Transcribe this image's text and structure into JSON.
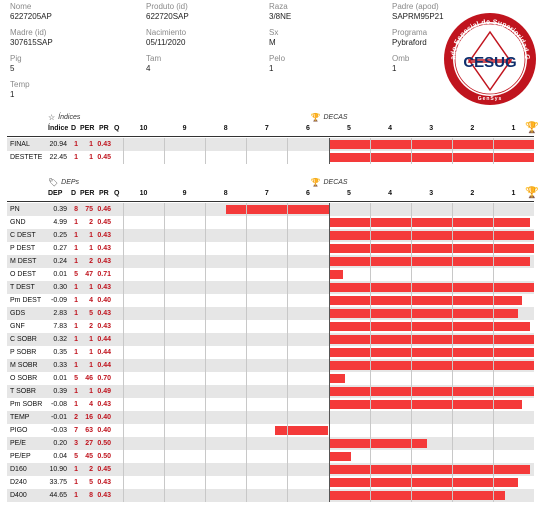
{
  "animal": {
    "fields": [
      {
        "label": "Nome",
        "value": "6227205AP"
      },
      {
        "label": "Produto (id)",
        "value": "622720SAP"
      },
      {
        "label": "Raza",
        "value": "3/8NE"
      },
      {
        "label": "Padre (apod)",
        "value": "SAPRM95P21"
      },
      {
        "label": "Madre (id)",
        "value": "307615SAP"
      },
      {
        "label": "Nacimiento",
        "value": "05/11/2020"
      },
      {
        "label": "Sx",
        "value": "M"
      },
      {
        "label": "Programa",
        "value": "Pybraford"
      },
      {
        "label": "Pig",
        "value": "5"
      },
      {
        "label": "Tam",
        "value": "4"
      },
      {
        "label": "Pelo",
        "value": "1"
      },
      {
        "label": "Omb",
        "value": "1"
      },
      {
        "label": "Temp",
        "value": "1"
      }
    ]
  },
  "seal": {
    "center_text": "CESUG",
    "ring_text": "Certificado Especial de Superioridad Genética",
    "bottom_text": "GenSys",
    "colors": {
      "ring": "#c0141e",
      "inner": "#ffffff",
      "center": "#0d2d6b"
    }
  },
  "indices": {
    "title": "Índices",
    "icon": "star-outline-icon",
    "decas_title": "DECAS",
    "columns": {
      "value": "Índice",
      "d": "D",
      "per": "PER",
      "pr": "PR",
      "q": "Q"
    },
    "decas": [
      "10",
      "9",
      "8",
      "7",
      "6",
      "5",
      "4",
      "3",
      "2",
      "1"
    ],
    "rows": [
      {
        "name": "FINAL",
        "value": "20.94",
        "d": "1",
        "per": "1",
        "pr": "0.43",
        "q": "",
        "deca_level": 9.7
      },
      {
        "name": "DESTETE",
        "value": "22.45",
        "d": "1",
        "per": "1",
        "pr": "0.45",
        "q": "",
        "deca_level": 9.7
      }
    ]
  },
  "deps": {
    "title": "DEPs",
    "icon": "tag-icon",
    "decas_title": "DECAS",
    "columns": {
      "value": "DEP",
      "d": "D",
      "per": "PER",
      "pr": "PR",
      "q": "Q"
    },
    "decas": [
      "10",
      "9",
      "8",
      "7",
      "6",
      "5",
      "4",
      "3",
      "2",
      "1"
    ],
    "rows": [
      {
        "name": "PN",
        "value": "0.39",
        "d": "8",
        "per": "75",
        "pr": "0.46",
        "deca_level": -2.5
      },
      {
        "name": "GND",
        "value": "4.99",
        "d": "1",
        "per": "2",
        "pr": "0.45",
        "deca_level": 4.9
      },
      {
        "name": "C DEST",
        "value": "0.25",
        "d": "1",
        "per": "1",
        "pr": "0.43",
        "deca_level": 5.0
      },
      {
        "name": "P DEST",
        "value": "0.27",
        "d": "1",
        "per": "1",
        "pr": "0.43",
        "deca_level": 5.0
      },
      {
        "name": "M DEST",
        "value": "0.24",
        "d": "1",
        "per": "2",
        "pr": "0.43",
        "deca_level": 4.9
      },
      {
        "name": "O DEST",
        "value": "0.01",
        "d": "5",
        "per": "47",
        "pr": "0.71",
        "deca_level": 0.35
      },
      {
        "name": "T DEST",
        "value": "0.30",
        "d": "1",
        "per": "1",
        "pr": "0.43",
        "deca_level": 5.0
      },
      {
        "name": "Pm DEST",
        "value": "-0.09",
        "d": "1",
        "per": "4",
        "pr": "0.40",
        "deca_level": 4.7
      },
      {
        "name": "GDS",
        "value": "2.83",
        "d": "1",
        "per": "5",
        "pr": "0.43",
        "deca_level": 4.6
      },
      {
        "name": "GNF",
        "value": "7.83",
        "d": "1",
        "per": "2",
        "pr": "0.43",
        "deca_level": 4.9
      },
      {
        "name": "C SOBR",
        "value": "0.32",
        "d": "1",
        "per": "1",
        "pr": "0.44",
        "deca_level": 5.0
      },
      {
        "name": "P SOBR",
        "value": "0.35",
        "d": "1",
        "per": "1",
        "pr": "0.44",
        "deca_level": 5.0
      },
      {
        "name": "M SOBR",
        "value": "0.33",
        "d": "1",
        "per": "1",
        "pr": "0.44",
        "deca_level": 5.0
      },
      {
        "name": "O SOBR",
        "value": "0.01",
        "d": "5",
        "per": "46",
        "pr": "0.70",
        "deca_level": 0.4
      },
      {
        "name": "T SOBR",
        "value": "0.39",
        "d": "1",
        "per": "1",
        "pr": "0.49",
        "deca_level": 5.0
      },
      {
        "name": "Pm SOBR",
        "value": "-0.08",
        "d": "1",
        "per": "4",
        "pr": "0.43",
        "deca_level": 4.7
      },
      {
        "name": "TEMP",
        "value": "-0.01",
        "d": "2",
        "per": "16",
        "pr": "0.40",
        "deca_level": 0
      },
      {
        "name": "PIGO",
        "value": "-0.03",
        "d": "7",
        "per": "63",
        "pr": "0.40",
        "deca_level": -1.3
      },
      {
        "name": "PE/E",
        "value": "0.20",
        "d": "3",
        "per": "27",
        "pr": "0.50",
        "deca_level": 2.4
      },
      {
        "name": "PE/EP",
        "value": "0.04",
        "d": "5",
        "per": "45",
        "pr": "0.50",
        "deca_level": 0.55
      },
      {
        "name": "D160",
        "value": "10.90",
        "d": "1",
        "per": "2",
        "pr": "0.45",
        "deca_level": 4.9
      },
      {
        "name": "D240",
        "value": "33.75",
        "d": "1",
        "per": "5",
        "pr": "0.43",
        "deca_level": 4.6
      },
      {
        "name": "D400",
        "value": "44.65",
        "d": "1",
        "per": "8",
        "pr": "0.43",
        "deca_level": 4.3
      }
    ]
  },
  "colors": {
    "bar": "#f43a3a",
    "accent_red": "#c0141e",
    "trophy": "#e3a51a",
    "stripe": "#e6e6e6"
  }
}
